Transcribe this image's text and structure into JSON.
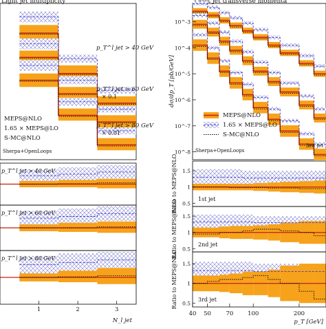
{
  "chart_data": [
    {
      "type": "step",
      "title": "Light jet multiplicity",
      "xlabel": "N_l jet",
      "x_ticks": [
        "1",
        "2",
        "3"
      ],
      "edges": [
        0.5,
        1.5,
        2.5,
        3.5
      ],
      "xlim": [
        0.0,
        3.5
      ],
      "ylog": true,
      "legend": [
        "MEPS@NLO",
        "1.65 × MEPS@LO",
        "S-MC@NLO"
      ],
      "generator_label": "Sherpa+OpenLoops",
      "cut_labels": [
        {
          "cut": "p_T^l jet > 40 GeV",
          "scale": ""
        },
        {
          "cut": "p_T^l jet > 60 GeV",
          "scale": "× 0.1"
        },
        {
          "cut": "p_T^l jet > 80 GeV",
          "scale": "× 0.01"
        }
      ],
      "series": [
        {
          "cut": "40 GeV",
          "central": [
            6.2,
            4.7,
            3.6
          ],
          "band_lo": [
            5.9,
            4.4,
            3.35
          ],
          "band_hi": [
            6.5,
            5.0,
            3.85
          ],
          "lo_lo": [
            6.6,
            5.1,
            3.95
          ],
          "lo_hi": [
            7.0,
            5.4,
            4.2
          ]
        },
        {
          "cut": "60 GeV",
          "central": [
            5.3,
            3.95,
            2.9
          ],
          "band_lo": [
            5.05,
            3.7,
            2.65
          ],
          "band_hi": [
            5.55,
            4.2,
            3.15
          ],
          "lo_lo": [
            5.6,
            4.3,
            3.25
          ],
          "lo_hi": [
            6.0,
            4.6,
            3.5
          ]
        },
        {
          "cut": "80 GeV",
          "central": [
            4.45,
            3.15,
            2.05
          ],
          "band_lo": [
            4.2,
            2.95,
            1.85
          ],
          "band_hi": [
            4.7,
            3.4,
            2.3
          ],
          "lo_lo": [
            4.8,
            3.5,
            2.45
          ],
          "lo_hi": [
            5.2,
            3.8,
            2.7
          ]
        }
      ],
      "ratio_panels": [
        {
          "label": "p_T^l jet > 40 GeV",
          "ylim": [
            0.0,
            2.0
          ],
          "band_lo": [
            0.85,
            0.85,
            0.8
          ],
          "band_hi": [
            1.15,
            1.2,
            1.25
          ],
          "lo_lo": [
            1.1,
            1.15,
            1.25
          ],
          "lo_hi": [
            1.7,
            1.8,
            1.9
          ],
          "smc": [
            1.0,
            1.02,
            1.06
          ]
        },
        {
          "label": "p_T^l jet > 60 GeV",
          "ylim": [
            0.0,
            2.0
          ],
          "band_lo": [
            0.85,
            0.82,
            0.78
          ],
          "band_hi": [
            1.15,
            1.22,
            1.28
          ],
          "lo_lo": [
            1.1,
            1.15,
            1.3
          ],
          "lo_hi": [
            1.75,
            1.85,
            1.95
          ],
          "smc": [
            1.0,
            1.0,
            1.04
          ]
        },
        {
          "label": "p_T^l jet > 80 GeV",
          "ylim": [
            0.0,
            2.0
          ],
          "band_lo": [
            0.85,
            0.82,
            0.75
          ],
          "band_hi": [
            1.15,
            1.25,
            1.35
          ],
          "lo_lo": [
            1.15,
            1.2,
            1.35
          ],
          "lo_hi": [
            1.8,
            1.9,
            1.95
          ],
          "smc": [
            1.0,
            1.02,
            1.06
          ]
        }
      ]
    },
    {
      "type": "step",
      "title": "Light jet transverse momenta",
      "ylabel": "dσ/dp_T [pb/GeV]",
      "xlabel": "p_T [GeV]",
      "ylog": true,
      "xlog": true,
      "x_ticks": [
        "40",
        "50",
        "70",
        "100",
        "200"
      ],
      "y_ticks": [
        "10^-3",
        "10^-4",
        "10^-5",
        "10^-6",
        "10^-7",
        "10^-8"
      ],
      "ylim_exp": [
        -8.3,
        -2.3
      ],
      "xlim": [
        40,
        300
      ],
      "edges": [
        40,
        50,
        60,
        70,
        85,
        100,
        125,
        150,
        200,
        250,
        300
      ],
      "legend": [
        "MEPS@NLO",
        "1.65 × MEPS@LO",
        "S-MC@NLO"
      ],
      "generator_label": "Sherpa+OpenLoops",
      "series": [
        {
          "name": "1st jet",
          "log_central": [
            -2.6,
            -2.75,
            -2.95,
            -3.15,
            -3.35,
            -3.6,
            -3.9,
            -4.2,
            -4.6,
            -5.0
          ]
        },
        {
          "name": "2nd jet",
          "log_central": [
            -3.1,
            -3.4,
            -3.75,
            -4.1,
            -4.5,
            -4.9,
            -5.3,
            -5.7,
            -6.2,
            -6.7
          ]
        },
        {
          "name": "3rd jet",
          "log_central": [
            -3.9,
            -4.4,
            -4.9,
            -5.35,
            -5.8,
            -6.3,
            -6.75,
            -7.2,
            -7.7,
            -8.1
          ]
        }
      ],
      "ratio_panels": [
        {
          "label": "1st jet",
          "ylabel": "Ratio to MEPS@NLO",
          "x_labels": [
            "0.5",
            "1",
            "1.5"
          ],
          "y_ticks": [
            0.5,
            1.0,
            1.5
          ],
          "ylim": [
            0.4,
            1.8
          ],
          "band_half": [
            0.1,
            0.1,
            0.1,
            0.1,
            0.1,
            0.12,
            0.14,
            0.16,
            0.18,
            0.2
          ],
          "lo_lo": [
            1.05,
            1.05,
            1.05,
            1.05,
            1.05,
            1.05,
            1.05,
            1.05,
            1.05,
            1.05
          ],
          "lo_hi": [
            1.55,
            1.55,
            1.55,
            1.55,
            1.5,
            1.5,
            1.5,
            1.5,
            1.5,
            1.5
          ],
          "smc": [
            1.0,
            1.0,
            1.0,
            0.98,
            0.98,
            0.98,
            0.97,
            0.97,
            0.95,
            0.95
          ]
        },
        {
          "label": "2nd jet",
          "ylabel": "Ratio to MEPS@NLO",
          "x_labels": [
            "0.5",
            "1",
            "1.5"
          ],
          "y_ticks": [
            0.5,
            1.0,
            1.5
          ],
          "ylim": [
            0.4,
            1.8
          ],
          "band_half": [
            0.15,
            0.15,
            0.18,
            0.2,
            0.2,
            0.22,
            0.25,
            0.3,
            0.35,
            0.35
          ],
          "lo_lo": [
            1.1,
            1.1,
            1.1,
            1.1,
            1.1,
            1.1,
            1.1,
            1.1,
            1.1,
            1.1
          ],
          "lo_hi": [
            1.55,
            1.55,
            1.55,
            1.55,
            1.55,
            1.5,
            1.5,
            1.5,
            1.5,
            1.5
          ],
          "smc": [
            0.95,
            0.95,
            1.0,
            1.0,
            1.05,
            1.1,
            1.1,
            1.05,
            1.0,
            0.9
          ]
        },
        {
          "label": "3rd jet",
          "ylabel": "Ratio to MEPS@NLO",
          "x_labels": [
            "0.5",
            "1",
            "1.5"
          ],
          "y_ticks": [
            0.5,
            1.0,
            1.5
          ],
          "ylim": [
            0.4,
            1.8
          ],
          "band_half": [
            0.2,
            0.2,
            0.22,
            0.25,
            0.3,
            0.3,
            0.35,
            0.45,
            0.5,
            0.5
          ],
          "lo_lo": [
            1.1,
            1.1,
            1.1,
            1.1,
            1.1,
            1.1,
            1.1,
            1.1,
            1.1,
            1.1
          ],
          "lo_hi": [
            1.55,
            1.55,
            1.55,
            1.55,
            1.55,
            1.5,
            1.5,
            1.5,
            1.5,
            1.5
          ],
          "smc": [
            1.0,
            1.05,
            1.1,
            1.1,
            1.15,
            1.2,
            1.1,
            1.0,
            0.8,
            0.6
          ]
        }
      ]
    }
  ]
}
